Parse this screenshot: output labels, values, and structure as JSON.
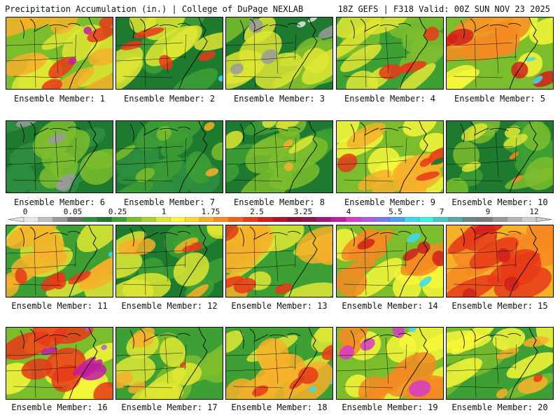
{
  "header": {
    "title": "Precipitation Accumulation (in.) | College of DuPage NEXLAB",
    "run_info": "18Z GEFS | F318 Valid: 00Z SUN NOV 23 2025"
  },
  "colorbar": {
    "labels": [
      "0",
      "0.05",
      "0.25",
      "1",
      "1.75",
      "2.5",
      "3.25",
      "4",
      "5.5",
      "7",
      "9",
      "12"
    ],
    "colors": [
      "#e6e6e6",
      "#bfbfbf",
      "#9a9a9a",
      "#6f6f6f",
      "#2f8f3f",
      "#1e7a2e",
      "#3e9f35",
      "#7cbd2e",
      "#a8d22c",
      "#dfe634",
      "#f7f73a",
      "#f9d634",
      "#f6b02a",
      "#f48a22",
      "#ef621c",
      "#e63a18",
      "#d0201c",
      "#b01628",
      "#8e1030",
      "#8a1848",
      "#a0187a",
      "#c01ca2",
      "#d63ac8",
      "#b05ae0",
      "#7878f0",
      "#4aa0f0",
      "#3cdaf0",
      "#3cf0e0",
      "#48c8c0",
      "#58a8a8",
      "#6a8888",
      "#7c7c7c",
      "#989898",
      "#b4b4b4",
      "#cccccc"
    ]
  },
  "panels": [
    {
      "label": "Ensemble Member: 1",
      "palette": [
        "#7cbd2e",
        "#dfe634",
        "#f6b02a",
        "#e63a18",
        "#c01ca2"
      ]
    },
    {
      "label": "Ensemble Member: 2",
      "palette": [
        "#1e7a2e",
        "#3e9f35",
        "#dfe634",
        "#e63a18",
        "#3cdaf0"
      ]
    },
    {
      "label": "Ensemble Member: 3",
      "palette": [
        "#1e7a2e",
        "#7cbd2e",
        "#dfe634",
        "#9a9a9a",
        "#e6e6e6"
      ]
    },
    {
      "label": "Ensemble Member: 4",
      "palette": [
        "#3e9f35",
        "#7cbd2e",
        "#dfe634",
        "#e63a18",
        "#d63ac8"
      ]
    },
    {
      "label": "Ensemble Member: 5",
      "palette": [
        "#7cbd2e",
        "#f7f73a",
        "#f48a22",
        "#d0201c",
        "#3cdaf0"
      ]
    },
    {
      "label": "Ensemble Member: 6",
      "palette": [
        "#1e7a2e",
        "#2f8f3f",
        "#7cbd2e",
        "#9a9a9a",
        "#e6e6e6"
      ]
    },
    {
      "label": "Ensemble Member: 7",
      "palette": [
        "#1e7a2e",
        "#2f8f3f",
        "#3e9f35",
        "#7cbd2e",
        "#f6b02a"
      ]
    },
    {
      "label": "Ensemble Member: 8",
      "palette": [
        "#1e7a2e",
        "#3e9f35",
        "#7cbd2e",
        "#dfe634",
        "#f6b02a"
      ]
    },
    {
      "label": "Ensemble Member: 9",
      "palette": [
        "#7cbd2e",
        "#f7f73a",
        "#f6b02a",
        "#e63a18",
        "#1e7a2e"
      ]
    },
    {
      "label": "Ensemble Member: 10",
      "palette": [
        "#1e7a2e",
        "#3e9f35",
        "#7cbd2e",
        "#dfe634",
        "#f48a22"
      ]
    },
    {
      "label": "Ensemble Member: 11",
      "palette": [
        "#3e9f35",
        "#dfe634",
        "#f6b02a",
        "#e63a18",
        "#3cdaf0"
      ]
    },
    {
      "label": "Ensemble Member: 12",
      "palette": [
        "#1e7a2e",
        "#3e9f35",
        "#dfe634",
        "#f6b02a",
        "#e63a18"
      ]
    },
    {
      "label": "Ensemble Member: 13",
      "palette": [
        "#3e9f35",
        "#dfe634",
        "#f6b02a",
        "#e63a18",
        "#8e1030"
      ]
    },
    {
      "label": "Ensemble Member: 14",
      "palette": [
        "#7cbd2e",
        "#f7f73a",
        "#f48a22",
        "#d0201c",
        "#3cdaf0"
      ]
    },
    {
      "label": "Ensemble Member: 15",
      "palette": [
        "#f6b02a",
        "#f48a22",
        "#e63a18",
        "#d0201c",
        "#3cdaf0"
      ]
    },
    {
      "label": "Ensemble Member: 16",
      "palette": [
        "#7cbd2e",
        "#f7f73a",
        "#e63a18",
        "#c01ca2",
        "#b05ae0"
      ]
    },
    {
      "label": "Ensemble Member: 17",
      "palette": [
        "#3e9f35",
        "#7cbd2e",
        "#dfe634",
        "#f6b02a",
        "#e63a18"
      ]
    },
    {
      "label": "Ensemble Member: 18",
      "palette": [
        "#3e9f35",
        "#dfe634",
        "#f6b02a",
        "#e63a18",
        "#3cdaf0"
      ]
    },
    {
      "label": "Ensemble Member: 19",
      "palette": [
        "#7cbd2e",
        "#f7f73a",
        "#f48a22",
        "#d63ac8",
        "#3cdaf0"
      ]
    },
    {
      "label": "Ensemble Member: 20",
      "palette": [
        "#3e9f35",
        "#7cbd2e",
        "#f7f73a",
        "#f6b02a",
        "#e63a18"
      ]
    }
  ]
}
